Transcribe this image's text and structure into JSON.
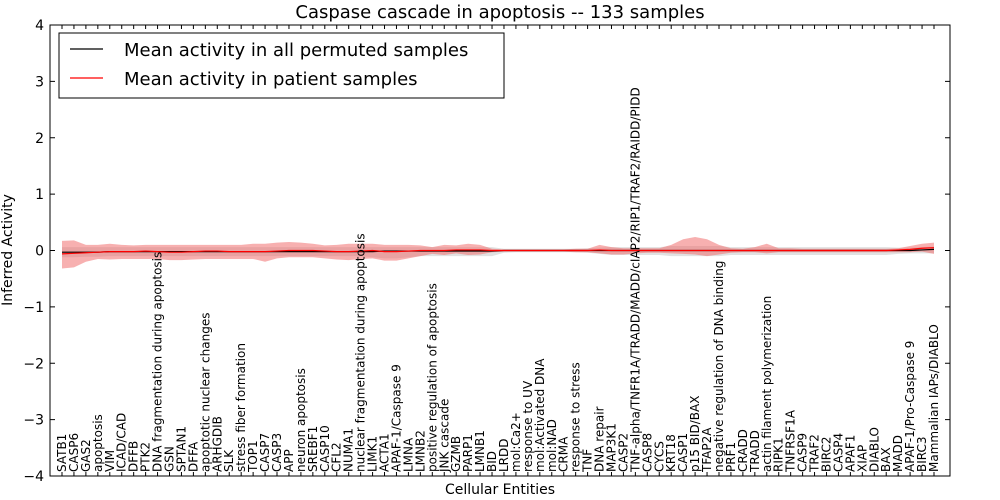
{
  "chart_data": {
    "type": "line",
    "title": "Caspase cascade in apoptosis -- 133 samples",
    "xlabel": "Cellular Entities",
    "ylabel": "Inferred Activity",
    "ylim": [
      -4,
      4
    ],
    "yticks": [
      -4,
      -3,
      -2,
      -1,
      0,
      1,
      2,
      3,
      4
    ],
    "ytick_labels": [
      "−4",
      "−3",
      "−2",
      "−1",
      "0",
      "1",
      "2",
      "3",
      "4"
    ],
    "legend": {
      "placement": "top-left",
      "entries": [
        {
          "label": "Mean activity in all permuted samples",
          "color": "#000000"
        },
        {
          "label": "Mean activity in patient samples",
          "color": "#ff0000"
        }
      ]
    },
    "categories": [
      "SATB1",
      "CASP6",
      "GAS2",
      "apoptosis",
      "VIM",
      "ICAD/CAD",
      "DFFB",
      "PTK2",
      "DNA fragmentation during apoptosis",
      "GSN",
      "SPTAN1",
      "DFFA",
      "apoptotic nuclear changes",
      "ARHGDIB",
      "SLK",
      "stress fiber formation",
      "TOP1",
      "CASP7",
      "CASP3",
      "APP",
      "neuron apoptosis",
      "SREBF1",
      "CASP10",
      "CFL2",
      "NUMA1",
      "nuclear fragmentation during apoptosis",
      "LIMK1",
      "ACTA1",
      "APAF-1/Caspase 9",
      "LMNA",
      "LMNB2",
      "positive regulation of apoptosis",
      "JNK cascade",
      "GZMB",
      "PARP1",
      "LMNB1",
      "BID",
      "LRDD",
      "mol:Ca2+",
      "response to UV",
      "mol:Activated DNA",
      "mol:NAD",
      "CRMA",
      "response to stress",
      "TNF",
      "DNA repair",
      "MAP3K1",
      "CASP2",
      "TNF-alpha/TNFR1A/TRADD/MADD/cIAP2/RIP1/TRAF2/RAIDD/PIDD",
      "CASP8",
      "CYCS",
      "KRT18",
      "CASP1",
      "p15 BID/BAX",
      "TFAP2A",
      "negative regulation of DNA binding",
      "PRF1",
      "CRADD",
      "TRADD",
      "actin filament polymerization",
      "RIPK1",
      "TNFRSF1A",
      "CASP9",
      "TRAF2",
      "BIRC2",
      "CASP4",
      "APAF1",
      "XIAP",
      "DIABLO",
      "BAX",
      "MADD",
      "APAF-1/Pro-Caspase 9",
      "BIRC3",
      "Mammalian IAPs/DIABLO"
    ],
    "series": [
      {
        "name": "Mean activity in all permuted samples",
        "color": "#000000",
        "values": [
          -0.03,
          -0.03,
          -0.03,
          -0.03,
          -0.02,
          -0.02,
          -0.02,
          -0.02,
          -0.02,
          -0.02,
          -0.02,
          -0.02,
          -0.02,
          -0.02,
          -0.02,
          -0.02,
          -0.02,
          -0.02,
          -0.02,
          -0.02,
          -0.02,
          -0.02,
          -0.02,
          -0.02,
          -0.02,
          -0.02,
          -0.02,
          -0.01,
          -0.01,
          -0.01,
          -0.01,
          -0.01,
          -0.01,
          -0.01,
          -0.01,
          -0.01,
          -0.01,
          0,
          0,
          0,
          0,
          0,
          0,
          0,
          0,
          0,
          0,
          0,
          0,
          0,
          0,
          0,
          0,
          0,
          0,
          0,
          0,
          0,
          0,
          0,
          0,
          0,
          0,
          0,
          0,
          0,
          0,
          0,
          0,
          0,
          0,
          0,
          0.01,
          0.02
        ],
        "band_lower": [
          -0.12,
          -0.12,
          -0.11,
          -0.11,
          -0.1,
          -0.1,
          -0.1,
          -0.1,
          -0.1,
          -0.1,
          -0.1,
          -0.1,
          -0.1,
          -0.1,
          -0.1,
          -0.1,
          -0.1,
          -0.1,
          -0.1,
          -0.1,
          -0.1,
          -0.1,
          -0.1,
          -0.1,
          -0.1,
          -0.1,
          -0.12,
          -0.14,
          -0.14,
          -0.12,
          -0.1,
          -0.1,
          -0.1,
          -0.1,
          -0.1,
          -0.1,
          -0.1,
          -0.04,
          -0.03,
          -0.03,
          -0.03,
          -0.03,
          -0.03,
          -0.03,
          -0.04,
          -0.06,
          -0.08,
          -0.08,
          -0.08,
          -0.08,
          -0.08,
          -0.1,
          -0.1,
          -0.1,
          -0.1,
          -0.1,
          -0.08,
          -0.08,
          -0.08,
          -0.08,
          -0.08,
          -0.08,
          -0.08,
          -0.08,
          -0.08,
          -0.08,
          -0.08,
          -0.08,
          -0.08,
          -0.08,
          -0.06,
          -0.05,
          -0.05,
          -0.05
        ],
        "band_upper": [
          0.06,
          0.06,
          0.06,
          0.06,
          0.06,
          0.06,
          0.06,
          0.06,
          0.06,
          0.06,
          0.06,
          0.06,
          0.06,
          0.06,
          0.06,
          0.06,
          0.06,
          0.06,
          0.06,
          0.06,
          0.06,
          0.06,
          0.06,
          0.06,
          0.06,
          0.06,
          0.06,
          0.06,
          0.06,
          0.06,
          0.06,
          0.06,
          0.06,
          0.06,
          0.06,
          0.06,
          0.06,
          0.03,
          0.03,
          0.03,
          0.03,
          0.03,
          0.03,
          0.03,
          0.04,
          0.05,
          0.06,
          0.06,
          0.06,
          0.06,
          0.06,
          0.08,
          0.08,
          0.08,
          0.08,
          0.08,
          0.06,
          0.06,
          0.06,
          0.06,
          0.06,
          0.06,
          0.06,
          0.06,
          0.06,
          0.06,
          0.06,
          0.06,
          0.06,
          0.06,
          0.05,
          0.05,
          0.06,
          0.07
        ]
      },
      {
        "name": "Mean activity in patient samples",
        "color": "#ff0000",
        "values": [
          -0.06,
          -0.05,
          -0.04,
          -0.03,
          -0.02,
          -0.02,
          -0.02,
          -0.01,
          -0.02,
          -0.03,
          -0.03,
          -0.02,
          -0.01,
          -0.01,
          -0.02,
          -0.02,
          -0.02,
          -0.02,
          -0.01,
          0,
          0,
          0,
          -0.01,
          -0.02,
          -0.02,
          -0.01,
          0,
          -0.02,
          -0.02,
          -0.01,
          0,
          0,
          0,
          0.01,
          0.01,
          0.01,
          0,
          0,
          0,
          0,
          0,
          0,
          0,
          0,
          0,
          0.01,
          0,
          0,
          0,
          0,
          0,
          0,
          0,
          0,
          0,
          0,
          0,
          0,
          0,
          0,
          0,
          0,
          0,
          0,
          0,
          0,
          0,
          0,
          0,
          0,
          0.01,
          0.02,
          0.04,
          0.05
        ],
        "band_lower": [
          -0.32,
          -0.3,
          -0.2,
          -0.15,
          -0.16,
          -0.15,
          -0.15,
          -0.15,
          -0.15,
          -0.17,
          -0.17,
          -0.16,
          -0.15,
          -0.15,
          -0.15,
          -0.15,
          -0.15,
          -0.2,
          -0.14,
          -0.12,
          -0.12,
          -0.12,
          -0.14,
          -0.16,
          -0.17,
          -0.15,
          -0.14,
          -0.18,
          -0.18,
          -0.14,
          -0.1,
          -0.06,
          -0.08,
          -0.05,
          -0.08,
          -0.07,
          -0.03,
          -0.02,
          -0.02,
          -0.02,
          -0.02,
          -0.02,
          -0.02,
          -0.03,
          -0.03,
          -0.05,
          -0.07,
          -0.07,
          -0.05,
          -0.04,
          -0.04,
          -0.05,
          -0.06,
          -0.07,
          -0.1,
          -0.07,
          -0.04,
          -0.03,
          -0.03,
          -0.05,
          -0.03,
          -0.03,
          -0.03,
          -0.03,
          -0.03,
          -0.03,
          -0.03,
          -0.03,
          -0.03,
          -0.03,
          -0.03,
          -0.03,
          -0.02,
          -0.06
        ],
        "band_upper": [
          0.17,
          0.18,
          0.1,
          0.1,
          0.12,
          0.1,
          0.09,
          0.1,
          0.1,
          0.1,
          0.1,
          0.1,
          0.1,
          0.1,
          0.1,
          0.1,
          0.12,
          0.12,
          0.14,
          0.15,
          0.14,
          0.12,
          0.09,
          0.1,
          0.12,
          0.12,
          0.12,
          0.1,
          0.1,
          0.1,
          0.09,
          0.06,
          0.1,
          0.09,
          0.12,
          0.1,
          0.03,
          0.02,
          0.02,
          0.02,
          0.02,
          0.02,
          0.02,
          0.03,
          0.03,
          0.1,
          0.06,
          0.04,
          0.04,
          0.04,
          0.04,
          0.1,
          0.2,
          0.24,
          0.2,
          0.1,
          0.04,
          0.03,
          0.06,
          0.12,
          0.04,
          0.04,
          0.03,
          0.03,
          0.03,
          0.03,
          0.03,
          0.03,
          0.03,
          0.03,
          0.04,
          0.08,
          0.12,
          0.14
        ]
      }
    ]
  }
}
